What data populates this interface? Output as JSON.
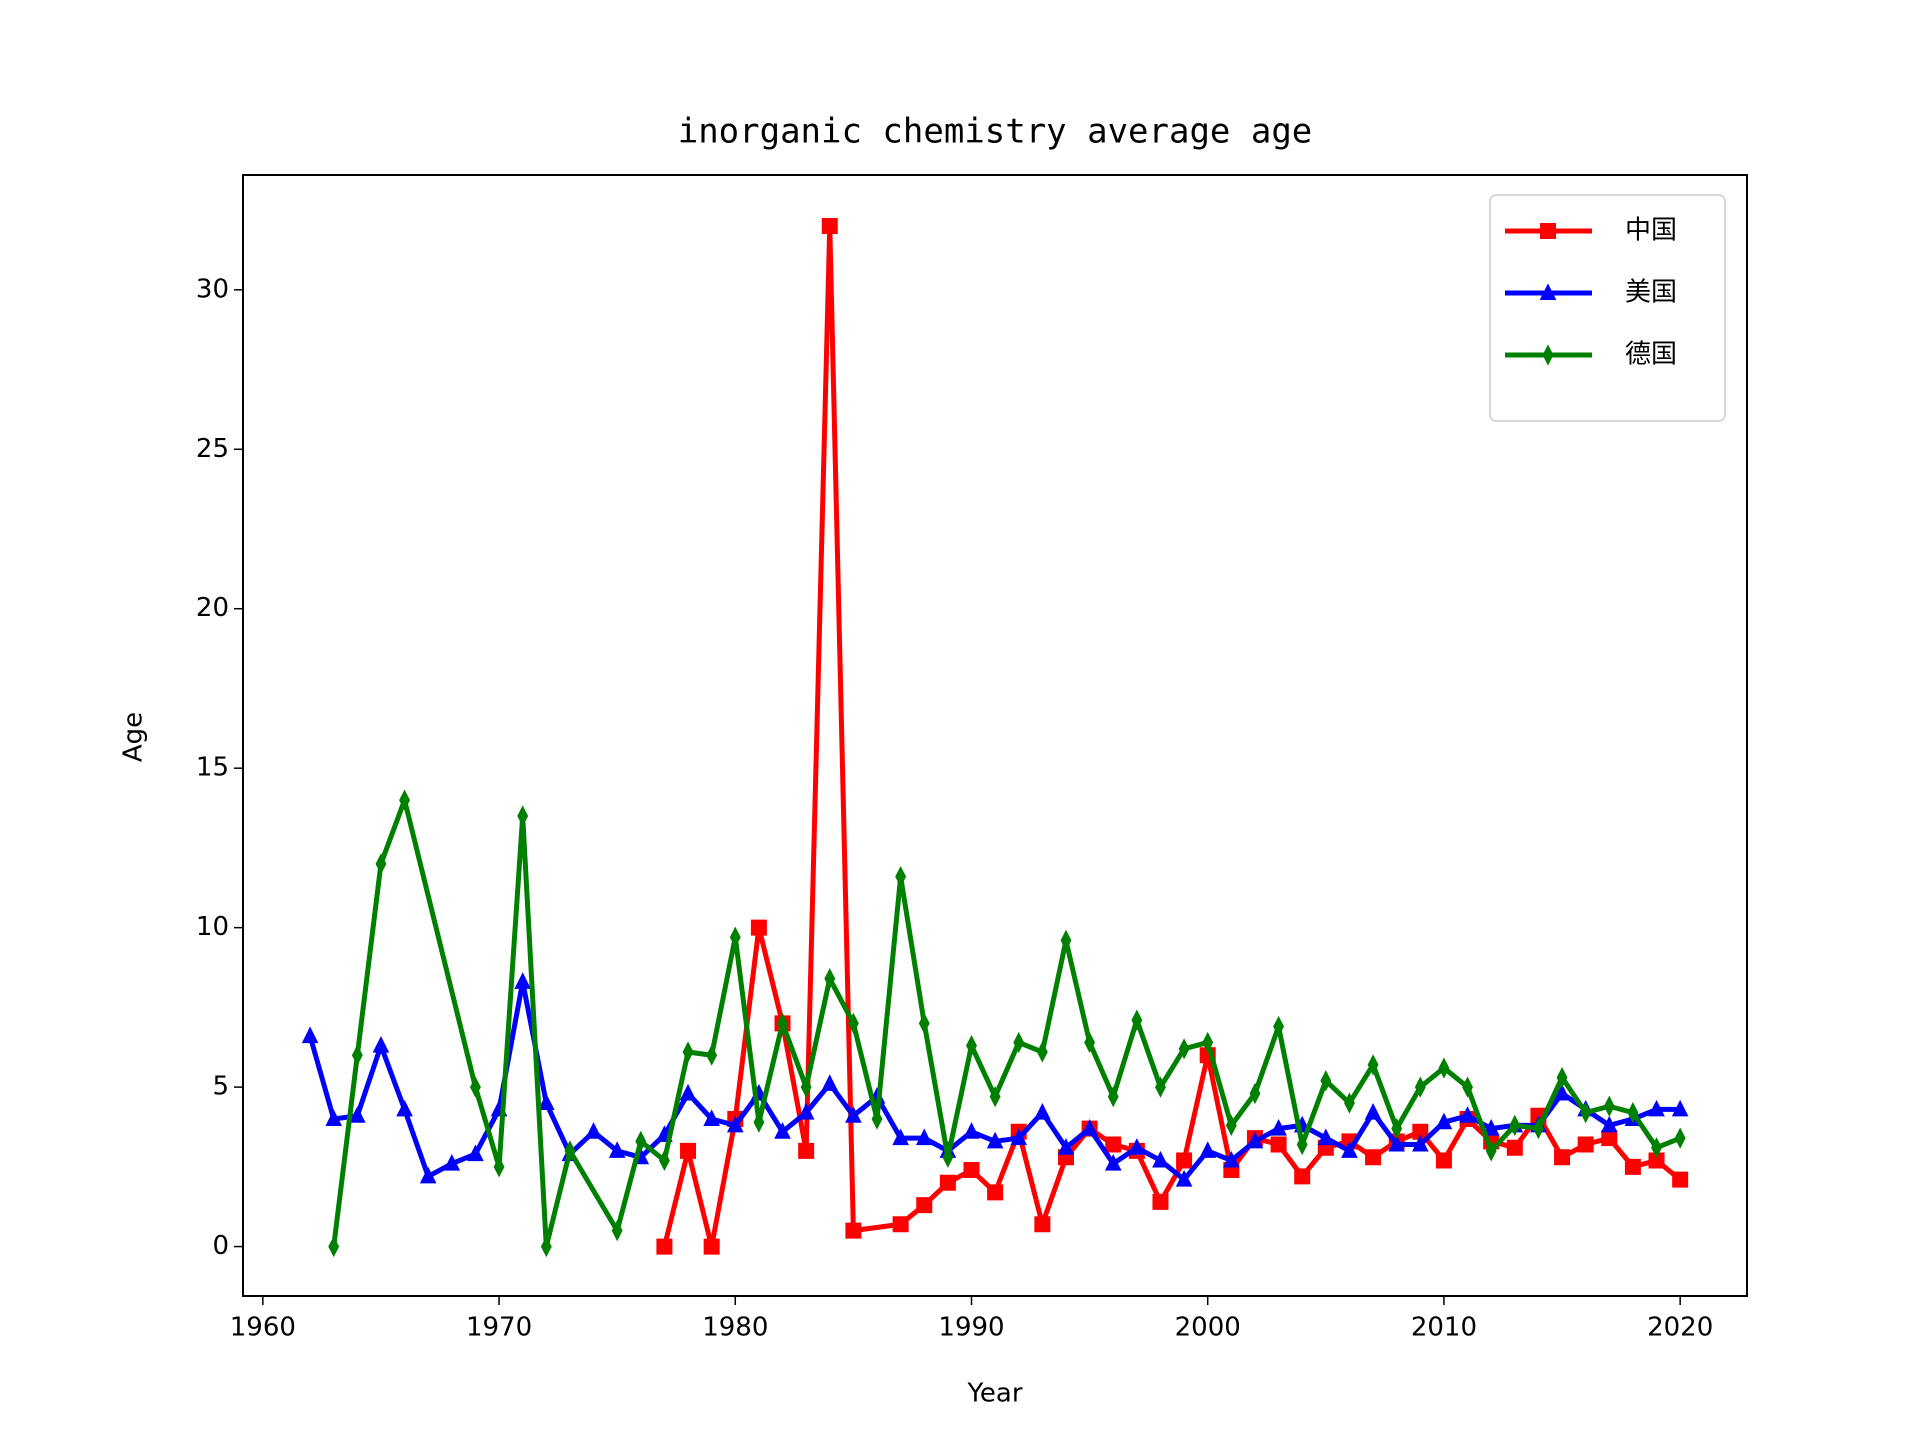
{
  "chart_data": {
    "type": "line",
    "title": "inorganic chemistry average age",
    "x_label": "Year",
    "y_label": "Age",
    "xlim": [
      1959.16,
      2022.83
    ],
    "ylim": [
      -1.55,
      33.6
    ],
    "xticks": [
      1960,
      1970,
      1980,
      1990,
      2000,
      2010,
      2020
    ],
    "yticks": [
      0,
      5,
      10,
      15,
      20,
      25,
      30
    ],
    "legend": "upper right",
    "grid": false,
    "series": [
      {
        "name": "中国",
        "color": "#ff0000",
        "marker": "square",
        "x": [
          1977,
          1978,
          1979,
          1980,
          1981,
          1982,
          1983,
          1984,
          1985,
          1987,
          1988,
          1989,
          1990,
          1991,
          1992,
          1993,
          1994,
          1995,
          1996,
          1997,
          1998,
          1999,
          2000,
          2001,
          2002,
          2003,
          2004,
          2005,
          2006,
          2007,
          2008,
          2009,
          2010,
          2011,
          2012,
          2013,
          2014,
          2015,
          2016,
          2017,
          2018,
          2019,
          2020
        ],
        "values": [
          0,
          3,
          0,
          4,
          10,
          7,
          3,
          32,
          0.5,
          0.7,
          1.3,
          2,
          2.4,
          1.7,
          3.6,
          0.7,
          2.8,
          3.7,
          3.2,
          3.0,
          1.4,
          2.7,
          6.0,
          2.4,
          3.4,
          3.2,
          2.2,
          3.1,
          3.3,
          2.8,
          3.3,
          3.6,
          2.7,
          4.0,
          3.3,
          3.1,
          4.1,
          2.8,
          3.2,
          3.4,
          2.5,
          2.7,
          2.1
        ]
      },
      {
        "name": "美国",
        "color": "#0000ff",
        "marker": "triangle",
        "x": [
          1962,
          1963,
          1964,
          1965,
          1966,
          1967,
          1968,
          1969,
          1970,
          1971,
          1972,
          1973,
          1974,
          1975,
          1976,
          1977,
          1978,
          1979,
          1980,
          1981,
          1982,
          1983,
          1984,
          1985,
          1986,
          1987,
          1988,
          1989,
          1990,
          1991,
          1992,
          1993,
          1994,
          1995,
          1996,
          1997,
          1998,
          1999,
          2000,
          2001,
          2002,
          2003,
          2004,
          2005,
          2006,
          2007,
          2008,
          2009,
          2010,
          2011,
          2012,
          2013,
          2014,
          2015,
          2016,
          2017,
          2018,
          2019,
          2020
        ],
        "values": [
          6.6,
          4.0,
          4.1,
          6.3,
          4.3,
          2.2,
          2.6,
          2.9,
          4.3,
          8.3,
          4.5,
          2.9,
          3.6,
          3.0,
          2.8,
          3.5,
          4.8,
          4.0,
          3.8,
          4.8,
          3.6,
          4.2,
          5.1,
          4.1,
          4.7,
          3.4,
          3.4,
          3.0,
          3.6,
          3.3,
          3.4,
          4.2,
          3.1,
          3.7,
          2.6,
          3.1,
          2.7,
          2.1,
          3.0,
          2.7,
          3.3,
          3.7,
          3.8,
          3.4,
          3.0,
          4.2,
          3.2,
          3.2,
          3.9,
          4.1,
          3.7,
          3.8,
          3.8,
          4.8,
          4.3,
          3.8,
          4.0,
          4.3,
          4.3
        ]
      },
      {
        "name": "德国",
        "color": "#008000",
        "marker": "diamond",
        "x": [
          1963,
          1964,
          1965,
          1966,
          1969,
          1970,
          1971,
          1972,
          1973,
          1975,
          1976,
          1977,
          1978,
          1979,
          1980,
          1981,
          1982,
          1983,
          1984,
          1985,
          1986,
          1987,
          1988,
          1989,
          1990,
          1991,
          1992,
          1993,
          1994,
          1995,
          1996,
          1997,
          1998,
          1999,
          2000,
          2001,
          2002,
          2003,
          2004,
          2005,
          2006,
          2007,
          2008,
          2009,
          2010,
          2011,
          2012,
          2013,
          2014,
          2015,
          2016,
          2017,
          2018,
          2019,
          2020
        ],
        "values": [
          0,
          6,
          12,
          14,
          5,
          2.5,
          13.5,
          0,
          3,
          0.5,
          3.3,
          2.7,
          6.1,
          6,
          9.7,
          3.9,
          7,
          5,
          8.4,
          7,
          4,
          11.6,
          7,
          2.8,
          6.3,
          4.7,
          6.4,
          6.1,
          9.6,
          6.4,
          4.7,
          7.1,
          5.0,
          6.2,
          6.4,
          3.8,
          4.8,
          6.9,
          3.2,
          5.2,
          4.5,
          5.7,
          3.7,
          5.0,
          5.6,
          5.0,
          3.0,
          3.8,
          3.7,
          5.3,
          4.2,
          4.4,
          4.2,
          3.1,
          3.4
        ]
      }
    ]
  }
}
